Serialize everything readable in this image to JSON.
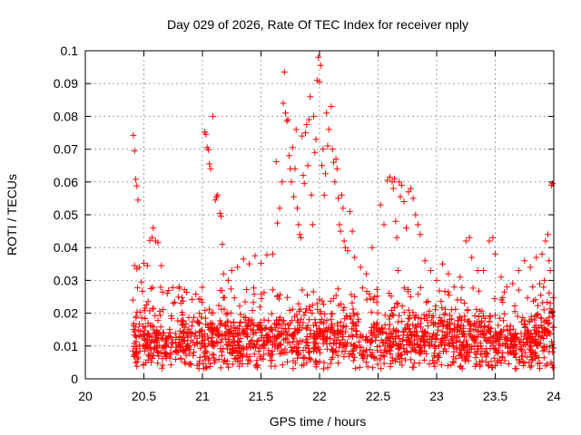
{
  "chart_data": {
    "type": "scatter",
    "title": "Day 029 of 2026, Rate Of TEC Index for receiver nply",
    "xlabel": "GPS time / hours",
    "ylabel": "ROTI / TECUs",
    "xlim": [
      20,
      24
    ],
    "ylim": [
      0,
      0.1
    ],
    "grid": true,
    "marker": "+",
    "color": "#ff0000",
    "x_ticks": [
      "20",
      "20.5",
      "21",
      "21.5",
      "22",
      "22.5",
      "23",
      "23.5",
      "24"
    ],
    "y_ticks": [
      "0",
      "0.01",
      "0.02",
      "0.03",
      "0.04",
      "0.05",
      "0.06",
      "0.07",
      "0.08",
      "0.09",
      "0.1"
    ],
    "series": [
      {
        "name": "ROTI",
        "points": [
          [
            20.41,
            0.0742
          ],
          [
            20.42,
            0.0695
          ],
          [
            20.43,
            0.0608
          ],
          [
            20.44,
            0.0588
          ],
          [
            20.45,
            0.0545
          ],
          [
            20.42,
            0.0345
          ],
          [
            20.44,
            0.0335
          ],
          [
            20.46,
            0.034
          ],
          [
            20.48,
            0.0295
          ],
          [
            20.5,
            0.0352
          ],
          [
            20.53,
            0.0345
          ],
          [
            20.55,
            0.0422
          ],
          [
            20.57,
            0.043
          ],
          [
            20.58,
            0.046
          ],
          [
            20.6,
            0.042
          ],
          [
            20.62,
            0.0415
          ],
          [
            20.65,
            0.0345
          ],
          [
            20.7,
            0.026
          ],
          [
            20.75,
            0.023
          ],
          [
            20.8,
            0.028
          ],
          [
            21.02,
            0.0752
          ],
          [
            21.03,
            0.0745
          ],
          [
            21.04,
            0.0705
          ],
          [
            21.05,
            0.0698
          ],
          [
            21.06,
            0.0655
          ],
          [
            21.07,
            0.064
          ],
          [
            21.09,
            0.08
          ],
          [
            21.11,
            0.0545
          ],
          [
            21.12,
            0.0555
          ],
          [
            21.13,
            0.056
          ],
          [
            21.15,
            0.0505
          ],
          [
            21.16,
            0.0495
          ],
          [
            21.17,
            0.041
          ],
          [
            21.18,
            0.032
          ],
          [
            21.22,
            0.03
          ],
          [
            21.25,
            0.033
          ],
          [
            21.3,
            0.034
          ],
          [
            21.35,
            0.0365
          ],
          [
            21.4,
            0.035
          ],
          [
            21.45,
            0.0375
          ],
          [
            21.5,
            0.0352
          ],
          [
            21.55,
            0.0378
          ],
          [
            21.6,
            0.038
          ],
          [
            21.63,
            0.0662
          ],
          [
            21.64,
            0.0475
          ],
          [
            21.66,
            0.052
          ],
          [
            21.68,
            0.06
          ],
          [
            21.69,
            0.084
          ],
          [
            21.7,
            0.0935
          ],
          [
            21.71,
            0.081
          ],
          [
            21.72,
            0.0785
          ],
          [
            21.73,
            0.079
          ],
          [
            21.74,
            0.068
          ],
          [
            21.75,
            0.064
          ],
          [
            21.76,
            0.06
          ],
          [
            21.77,
            0.0705
          ],
          [
            21.78,
            0.0555
          ],
          [
            21.79,
            0.064
          ],
          [
            21.8,
            0.076
          ],
          [
            21.81,
            0.052
          ],
          [
            21.82,
            0.047
          ],
          [
            21.83,
            0.044
          ],
          [
            21.84,
            0.043
          ],
          [
            21.85,
            0.074
          ],
          [
            21.86,
            0.062
          ],
          [
            21.87,
            0.0595
          ],
          [
            21.88,
            0.075
          ],
          [
            21.89,
            0.0775
          ],
          [
            21.9,
            0.065
          ],
          [
            21.91,
            0.079
          ],
          [
            21.92,
            0.086
          ],
          [
            21.93,
            0.056
          ],
          [
            21.94,
            0.047
          ],
          [
            21.95,
            0.08
          ],
          [
            21.96,
            0.069
          ],
          [
            21.97,
            0.073
          ],
          [
            21.98,
            0.091
          ],
          [
            21.99,
            0.098
          ],
          [
            22.0,
            0.0905
          ],
          [
            22.01,
            0.0955
          ],
          [
            22.02,
            0.065
          ],
          [
            22.03,
            0.07
          ],
          [
            22.04,
            0.056
          ],
          [
            22.05,
            0.0625
          ],
          [
            22.06,
            0.081
          ],
          [
            22.07,
            0.071
          ],
          [
            22.08,
            0.076
          ],
          [
            22.1,
            0.083
          ],
          [
            22.11,
            0.07
          ],
          [
            22.12,
            0.066
          ],
          [
            22.13,
            0.06
          ],
          [
            22.14,
            0.067
          ],
          [
            22.15,
            0.064
          ],
          [
            22.16,
            0.055
          ],
          [
            22.17,
            0.047
          ],
          [
            22.18,
            0.045
          ],
          [
            22.19,
            0.056
          ],
          [
            22.2,
            0.052
          ],
          [
            22.21,
            0.042
          ],
          [
            22.22,
            0.04
          ],
          [
            22.24,
            0.039
          ],
          [
            22.26,
            0.051
          ],
          [
            22.28,
            0.045
          ],
          [
            22.3,
            0.037
          ],
          [
            22.35,
            0.034
          ],
          [
            22.4,
            0.032
          ],
          [
            22.45,
            0.04
          ],
          [
            22.52,
            0.053
          ],
          [
            22.55,
            0.047
          ],
          [
            22.58,
            0.0605
          ],
          [
            22.6,
            0.0615
          ],
          [
            22.62,
            0.06
          ],
          [
            22.63,
            0.058
          ],
          [
            22.64,
            0.061
          ],
          [
            22.65,
            0.048
          ],
          [
            22.66,
            0.043
          ],
          [
            22.67,
            0.033
          ],
          [
            22.68,
            0.06
          ],
          [
            22.69,
            0.0555
          ],
          [
            22.7,
            0.059
          ],
          [
            22.72,
            0.054
          ],
          [
            22.74,
            0.046
          ],
          [
            22.76,
            0.057
          ],
          [
            22.78,
            0.058
          ],
          [
            22.8,
            0.055
          ],
          [
            22.82,
            0.05
          ],
          [
            22.84,
            0.047
          ],
          [
            22.86,
            0.044
          ],
          [
            22.9,
            0.036
          ],
          [
            22.95,
            0.033
          ],
          [
            23.0,
            0.03
          ],
          [
            23.05,
            0.035
          ],
          [
            23.1,
            0.032
          ],
          [
            23.15,
            0.028
          ],
          [
            23.2,
            0.031
          ],
          [
            23.25,
            0.042
          ],
          [
            23.28,
            0.043
          ],
          [
            23.3,
            0.037
          ],
          [
            23.35,
            0.033
          ],
          [
            23.4,
            0.033
          ],
          [
            23.45,
            0.042
          ],
          [
            23.48,
            0.043
          ],
          [
            23.5,
            0.038
          ],
          [
            23.55,
            0.031
          ],
          [
            23.6,
            0.028
          ],
          [
            23.65,
            0.029
          ],
          [
            23.7,
            0.033
          ],
          [
            23.75,
            0.036
          ],
          [
            23.8,
            0.034
          ],
          [
            23.85,
            0.037
          ],
          [
            23.9,
            0.038
          ],
          [
            23.93,
            0.042
          ],
          [
            23.95,
            0.044
          ],
          [
            23.97,
            0.033
          ],
          [
            23.98,
            0.059
          ],
          [
            23.99,
            0.0595
          ],
          [
            23.96,
            0.036
          ],
          [
            23.92,
            0.03
          ],
          [
            23.88,
            0.029
          ],
          [
            23.82,
            0.028
          ]
        ],
        "dense_band": {
          "x_range": [
            20.4,
            24.0
          ],
          "y_range": [
            0.003,
            0.028
          ],
          "approx_points": 1800,
          "typical_y": 0.012
        }
      }
    ]
  }
}
